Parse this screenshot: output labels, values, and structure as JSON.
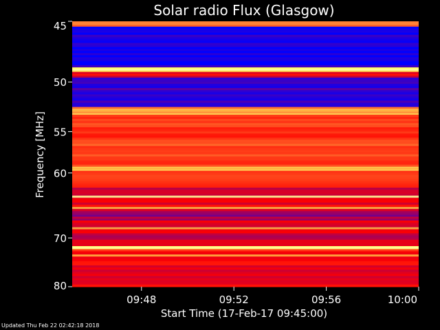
{
  "chart_data": {
    "type": "heatmap",
    "title": "Solar radio Flux (Glasgow)",
    "xlabel": "Start Time (17-Feb-17 09:45:00)",
    "ylabel": "Frequency [MHz]",
    "x_ticks": [
      "09:48",
      "09:52",
      "09:56",
      "10:00"
    ],
    "x_tick_minutes": [
      48,
      52,
      56,
      60
    ],
    "xlim_minutes": [
      45,
      60
    ],
    "y_ticks": [
      "45",
      "50",
      "55",
      "60",
      "70",
      "80"
    ],
    "y_tick_values": [
      45,
      50,
      55,
      60,
      70,
      80
    ],
    "ylim": [
      45,
      80
    ],
    "y_scale": "reciprocal",
    "colormap": [
      "#0000ff",
      "#ff0000",
      "#ffff66"
    ],
    "bands": [
      {
        "from": 45.0,
        "to": 45.4,
        "level": 0.75
      },
      {
        "from": 45.4,
        "to": 48.7,
        "level": 0.05
      },
      {
        "from": 48.7,
        "to": 49.1,
        "level": 0.98
      },
      {
        "from": 49.1,
        "to": 49.6,
        "level": 0.45
      },
      {
        "from": 49.6,
        "to": 52.4,
        "level": 0.1
      },
      {
        "from": 52.4,
        "to": 53.2,
        "level": 0.8
      },
      {
        "from": 53.2,
        "to": 59.2,
        "level": 0.62
      },
      {
        "from": 59.2,
        "to": 59.7,
        "level": 0.98
      },
      {
        "from": 59.7,
        "to": 62.0,
        "level": 0.55
      },
      {
        "from": 62.0,
        "to": 65.5,
        "level": 0.45
      },
      {
        "from": 65.5,
        "to": 67.0,
        "level": 0.3
      },
      {
        "from": 67.0,
        "to": 71.5,
        "level": 0.42
      },
      {
        "from": 71.5,
        "to": 72.1,
        "level": 0.97
      },
      {
        "from": 72.1,
        "to": 74.0,
        "level": 0.55
      },
      {
        "from": 74.0,
        "to": 80.0,
        "level": 0.48
      }
    ],
    "bright_lines_mhz": [
      48.9,
      52.8,
      59.45,
      63.3,
      65.0,
      68.3,
      71.8,
      73.3
    ],
    "footer": "Updated Thu Feb 22 02:42:18 2018"
  }
}
